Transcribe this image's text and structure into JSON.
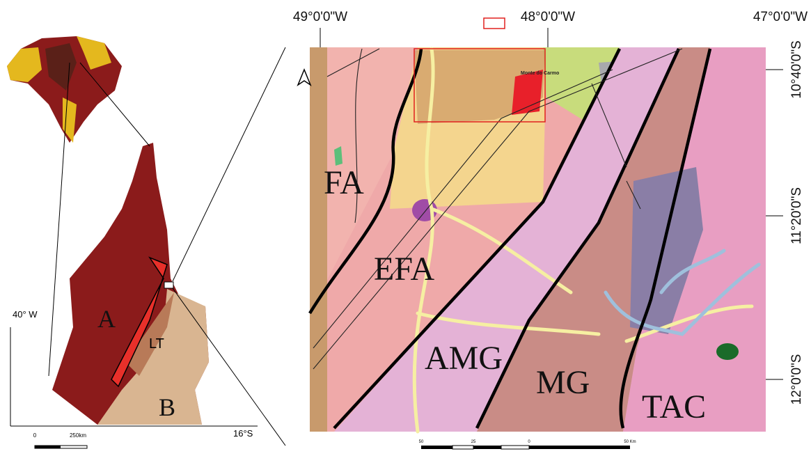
{
  "top_labels": [
    "49°0'0\"W",
    "48°0'0\"W",
    "47°0'0\"W"
  ],
  "right_labels": [
    "10°40'0\"S",
    "11°20'0\"S",
    "12°0'0\"S"
  ],
  "regions": [
    "FA",
    "EFA",
    "AMG",
    "MG",
    "TAC"
  ],
  "town": "Monte do Carmo",
  "scale_bar": [
    "50",
    "25",
    "0",
    "50 Km"
  ],
  "inset": {
    "longitude": "40° W",
    "latitude": "16°S",
    "regions": [
      "A",
      "B",
      "LT"
    ],
    "scale": [
      "0",
      "250km"
    ]
  }
}
